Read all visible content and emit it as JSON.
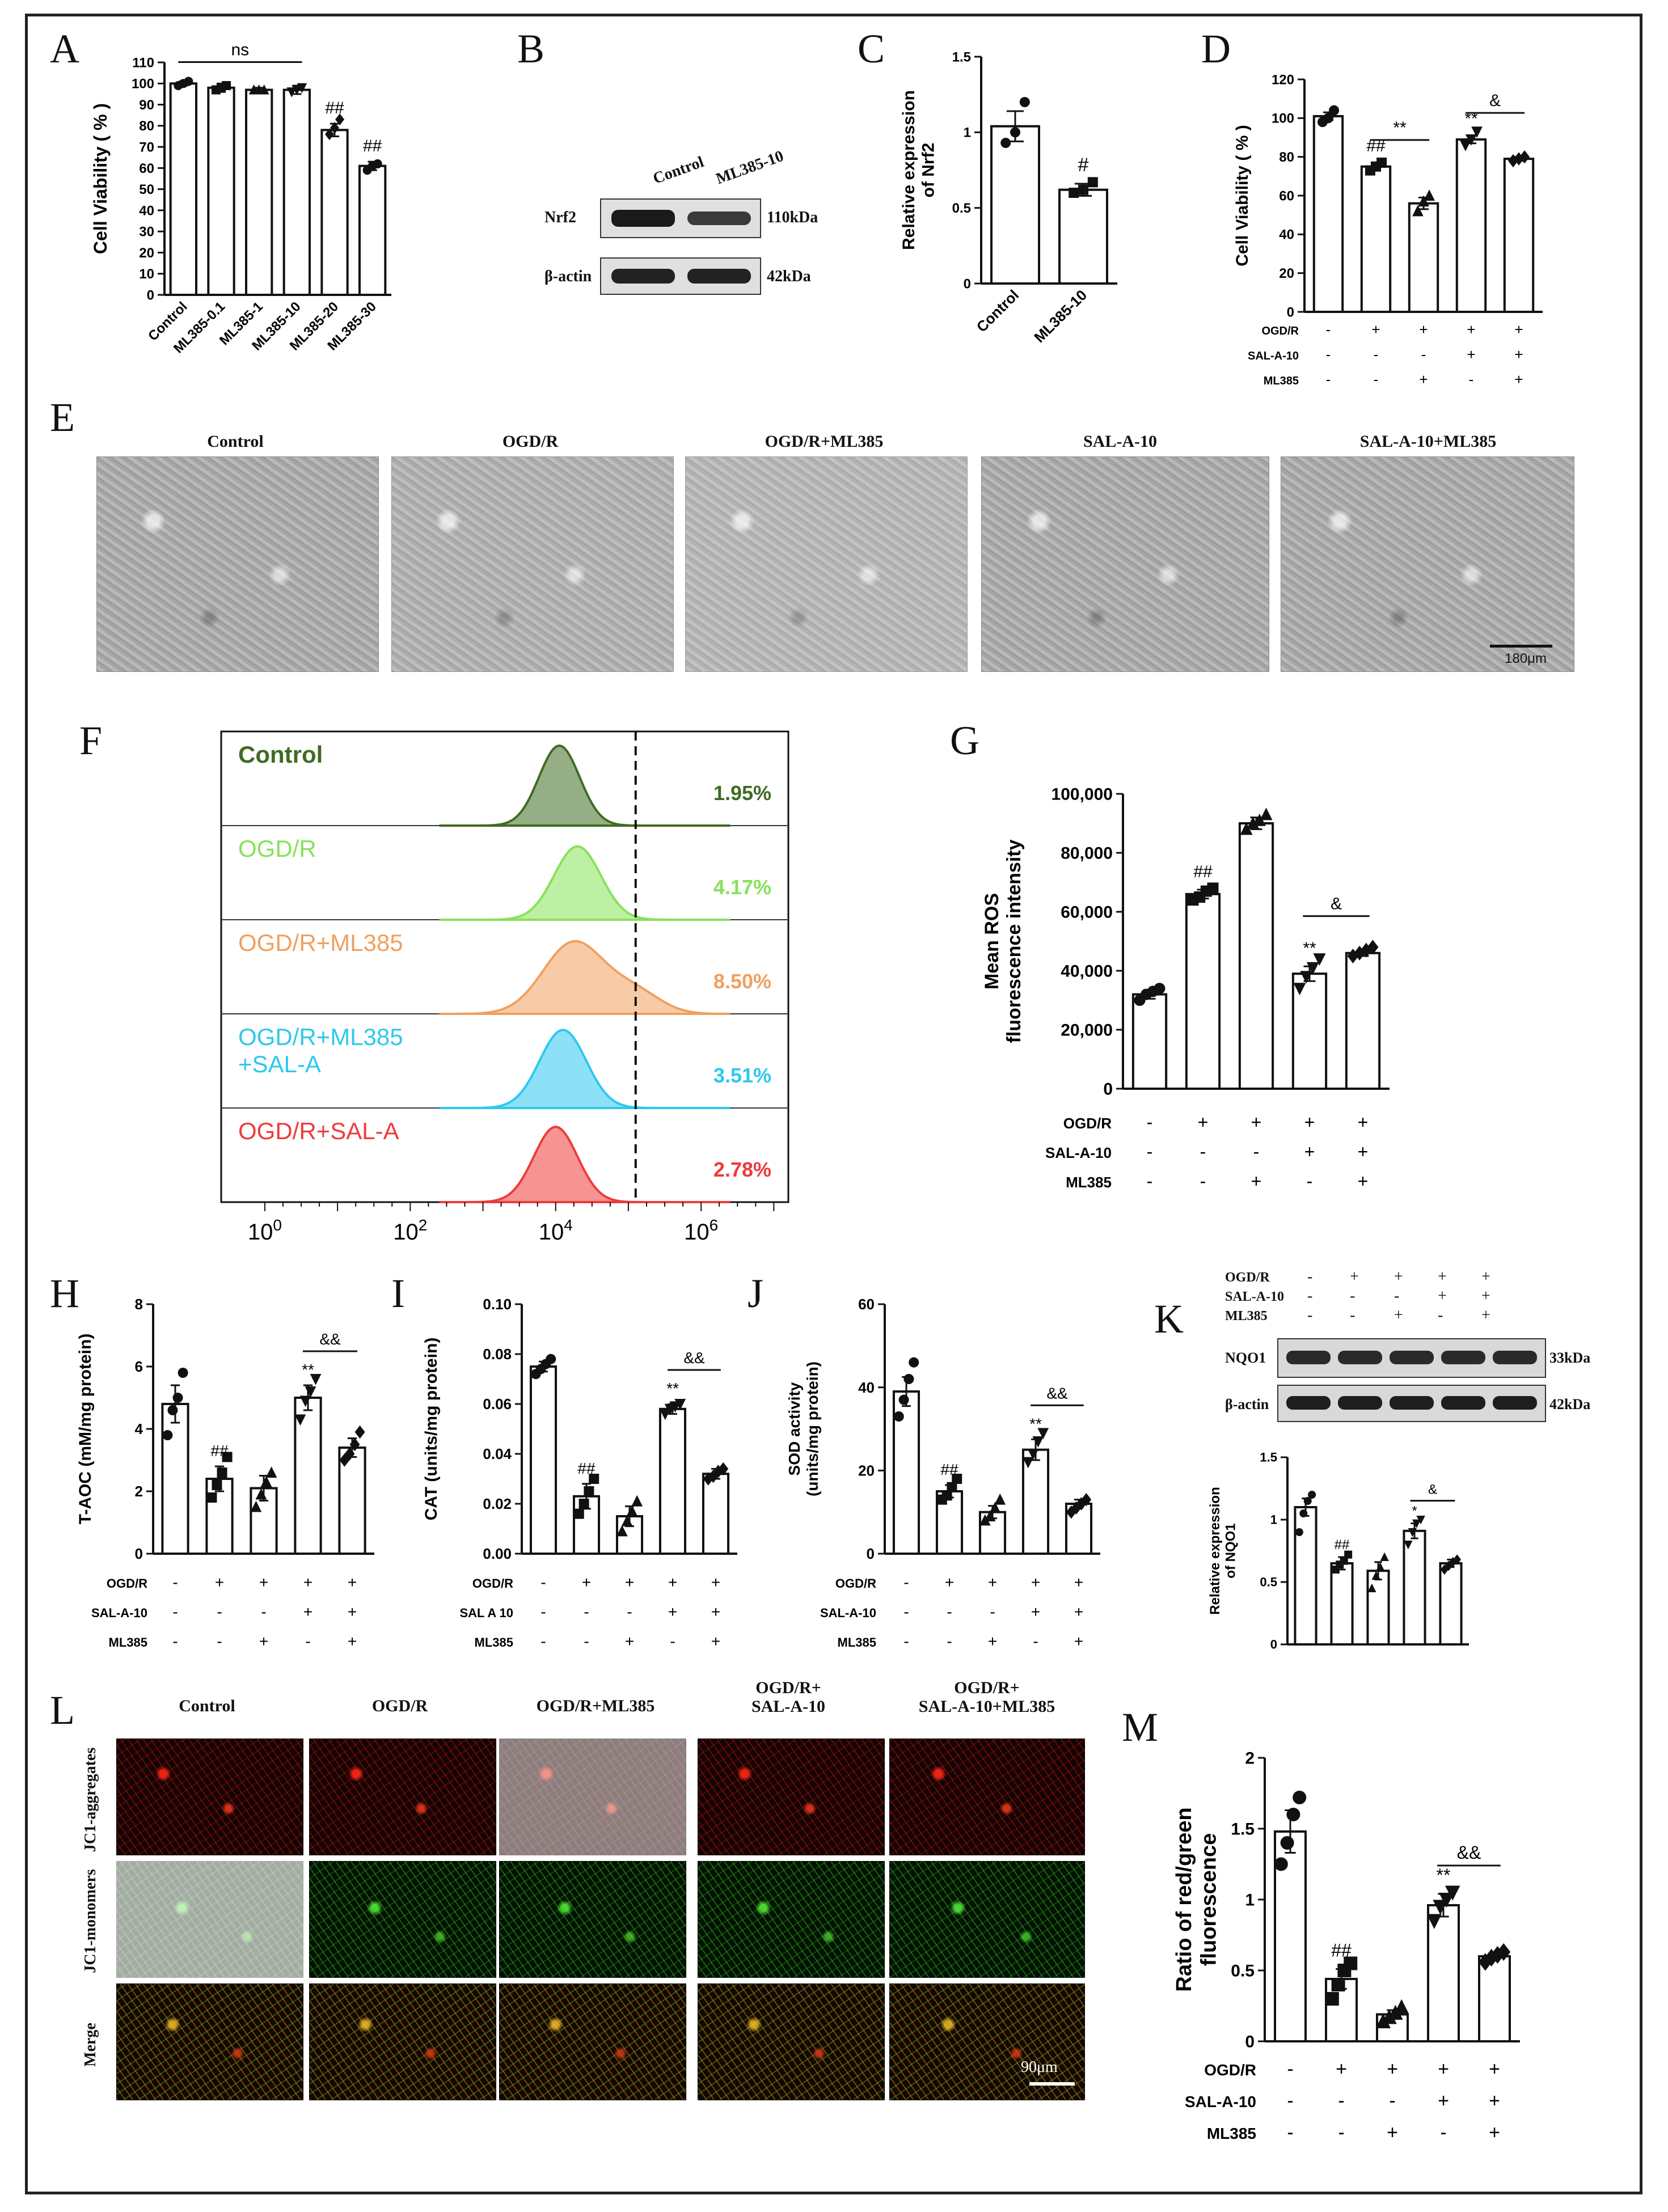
{
  "panel_letters": {
    "A": "A",
    "B": "B",
    "C": "C",
    "D": "D",
    "E": "E",
    "F": "F",
    "G": "G",
    "H": "H",
    "I": "I",
    "J": "J",
    "K": "K",
    "L": "L",
    "M": "M"
  },
  "treatment_rows": {
    "ogdr": "OGD/R",
    "sal": "SAL-A-10",
    "sal_I": "SAL A 10",
    "ml385": "ML385",
    "signs": [
      [
        "-",
        "+",
        "+",
        "+",
        "+"
      ],
      [
        "-",
        "-",
        "-",
        "+",
        "+"
      ],
      [
        "-",
        "-",
        "+",
        "-",
        "+"
      ]
    ]
  },
  "blot_B": {
    "lanes": [
      "Control",
      "ML385-10"
    ],
    "rows": [
      {
        "name": "Nrf2",
        "size": "110kDa"
      },
      {
        "name": "β-actin",
        "size": "42kDa"
      }
    ]
  },
  "blot_K": {
    "rows": [
      {
        "name": "NQO1",
        "size": "33kDa"
      },
      {
        "name": "β-actin",
        "size": "42kDa"
      }
    ]
  },
  "panel_E": {
    "titles": [
      "Control",
      "OGD/R",
      "OGD/R+ML385",
      "SAL-A-10",
      "SAL-A-10+ML385"
    ],
    "scale_bar": "180μm"
  },
  "panel_L": {
    "titles": [
      "Control",
      "OGD/R",
      "OGD/R+ML385",
      "OGD/R+\nSAL-A-10",
      "OGD/R+\nSAL-A-10+ML385"
    ],
    "rows": [
      "JC1-aggregates",
      "JC1-monomers",
      "Merge"
    ],
    "scale_bar": "90μm"
  },
  "chart_data": [
    {
      "panel": "A",
      "type": "bar",
      "ylabel": "Cell Viability ( % )",
      "categories": [
        "Control",
        "ML385-0.1",
        "ML385-1",
        "ML385-10",
        "ML385-20",
        "ML385-30"
      ],
      "values": [
        100,
        98,
        97,
        97,
        78,
        61
      ],
      "errors": [
        1,
        2,
        1,
        2,
        3,
        2
      ],
      "points": [
        [
          99,
          100,
          101
        ],
        [
          97,
          98,
          99
        ],
        [
          97,
          97,
          97
        ],
        [
          96,
          97,
          98
        ],
        [
          76,
          79,
          83
        ],
        [
          59,
          61,
          62
        ]
      ],
      "ylim": [
        0,
        110
      ],
      "yticks": [
        0,
        10,
        20,
        30,
        40,
        50,
        60,
        70,
        80,
        90,
        100,
        110
      ],
      "annotations": [
        "",
        "",
        "",
        "",
        "##",
        "##"
      ],
      "bracket": {
        "from": 0,
        "to": 3,
        "label": "ns"
      }
    },
    {
      "panel": "C",
      "type": "bar",
      "ylabel": "Relative expression\nof Nrf2",
      "categories": [
        "Control",
        "ML385-10"
      ],
      "values": [
        1.04,
        0.62
      ],
      "errors": [
        0.1,
        0.04
      ],
      "points": [
        [
          0.93,
          1.0,
          1.2
        ],
        [
          0.6,
          0.62,
          0.67
        ]
      ],
      "ylim": [
        0,
        1.5
      ],
      "yticks": [
        0.0,
        0.5,
        1.0,
        1.5
      ],
      "annotations": [
        "",
        "#"
      ]
    },
    {
      "panel": "D",
      "type": "bar",
      "ylabel": "Cell Viability ( % )",
      "values": [
        101,
        75,
        56,
        89,
        79
      ],
      "errors": [
        2,
        2,
        3,
        2,
        1
      ],
      "points": [
        [
          98,
          100,
          104
        ],
        [
          73,
          75,
          77
        ],
        [
          52,
          57,
          60
        ],
        [
          86,
          89,
          93
        ],
        [
          78,
          79,
          80
        ]
      ],
      "ylim": [
        0,
        120
      ],
      "yticks": [
        0,
        20,
        40,
        60,
        80,
        100,
        120
      ],
      "annotations": [
        "",
        "##",
        "",
        "**",
        ""
      ],
      "brackets": [
        {
          "from": 1,
          "to": 2,
          "label": "**"
        },
        {
          "from": 3,
          "to": 4,
          "label": "&"
        }
      ]
    },
    {
      "panel": "F",
      "type": "histogram",
      "xticks": [
        "10^0",
        "10^2",
        "10^4",
        "10^6"
      ],
      "series": [
        {
          "name": "Control",
          "percent": "1.95%",
          "color": "#3f6b22"
        },
        {
          "name": "OGD/R",
          "percent": "4.17%",
          "color": "#86e25a"
        },
        {
          "name": "OGD/R+ML385",
          "percent": "8.50%",
          "color": "#f0a060"
        },
        {
          "name": "OGD/R+ML385\n+SAL-A",
          "percent": "3.51%",
          "color": "#2ec8ee"
        },
        {
          "name": "OGD/R+SAL-A",
          "percent": "2.78%",
          "color": "#ee3b3b"
        }
      ]
    },
    {
      "panel": "G",
      "type": "bar",
      "ylabel": "Mean ROS\nfluorescence intensity",
      "values": [
        32000,
        66000,
        90000,
        39000,
        46000
      ],
      "errors": [
        1500,
        1500,
        2000,
        2500,
        1000
      ],
      "points": [
        [
          30000,
          32000,
          33000,
          34000
        ],
        [
          64000,
          65000,
          67000,
          68000
        ],
        [
          88000,
          90000,
          91000,
          93000
        ],
        [
          34000,
          38000,
          41000,
          44000
        ],
        [
          45000,
          46000,
          47000,
          48000
        ]
      ],
      "ylim": [
        0,
        100000
      ],
      "yticks": [
        0,
        20000,
        40000,
        60000,
        80000,
        100000
      ],
      "ytick_labels": [
        "0",
        "20,000",
        "40,000",
        "60,000",
        "80,000",
        "100,000"
      ],
      "annotations": [
        "",
        "##",
        "",
        "**",
        ""
      ],
      "brackets": [
        {
          "from": 3,
          "to": 4,
          "label": "&"
        }
      ]
    },
    {
      "panel": "H",
      "type": "bar",
      "ylabel": "T-AOC (mM/mg protein)",
      "values": [
        4.8,
        2.4,
        2.1,
        5.0,
        3.4
      ],
      "errors": [
        0.6,
        0.4,
        0.4,
        0.4,
        0.3
      ],
      "points": [
        [
          3.8,
          4.6,
          5.0,
          5.8
        ],
        [
          1.8,
          2.2,
          2.6,
          3.1
        ],
        [
          1.5,
          1.9,
          2.3,
          2.6
        ],
        [
          4.3,
          4.9,
          5.2,
          5.6
        ],
        [
          3.0,
          3.2,
          3.5,
          3.9
        ]
      ],
      "ylim": [
        0,
        8
      ],
      "yticks": [
        0,
        2,
        4,
        6,
        8
      ],
      "annotations": [
        "",
        "##",
        "",
        "**",
        ""
      ],
      "brackets": [
        {
          "from": 3,
          "to": 4,
          "label": "&&"
        }
      ]
    },
    {
      "panel": "I",
      "type": "bar",
      "ylabel": "CAT (units/mg protein)",
      "values": [
        0.075,
        0.023,
        0.015,
        0.058,
        0.032
      ],
      "errors": [
        0.002,
        0.005,
        0.004,
        0.002,
        0.002
      ],
      "points": [
        [
          0.072,
          0.074,
          0.076,
          0.078
        ],
        [
          0.016,
          0.02,
          0.025,
          0.03
        ],
        [
          0.009,
          0.013,
          0.017,
          0.021
        ],
        [
          0.056,
          0.058,
          0.059,
          0.06
        ],
        [
          0.03,
          0.031,
          0.033,
          0.034
        ]
      ],
      "ylim": [
        0,
        0.1
      ],
      "yticks": [
        0.0,
        0.02,
        0.04,
        0.06,
        0.08,
        0.1
      ],
      "ytick_labels": [
        "0.00",
        "0.02",
        "0.04",
        "0.06",
        "0.08",
        "0.10"
      ],
      "annotations": [
        "",
        "##",
        "",
        "**",
        ""
      ],
      "brackets": [
        {
          "from": 3,
          "to": 4,
          "label": "&&"
        }
      ]
    },
    {
      "panel": "J",
      "type": "bar",
      "ylabel": "SOD activity\n(units/mg protein)",
      "values": [
        39,
        15,
        10,
        25,
        12
      ],
      "errors": [
        3.5,
        1.5,
        1.5,
        2.5,
        1
      ],
      "points": [
        [
          33,
          37,
          42,
          46
        ],
        [
          13,
          14,
          16,
          18
        ],
        [
          8,
          9,
          11,
          13
        ],
        [
          22,
          24,
          27,
          29
        ],
        [
          10,
          11,
          12,
          13
        ]
      ],
      "ylim": [
        0,
        60
      ],
      "yticks": [
        0,
        20,
        40,
        60
      ],
      "annotations": [
        "",
        "##",
        "",
        "**",
        ""
      ],
      "brackets": [
        {
          "from": 3,
          "to": 4,
          "label": "&&"
        }
      ]
    },
    {
      "panel": "K",
      "type": "bar",
      "ylabel": "Relative expression\nof NQO1",
      "values": [
        1.1,
        0.65,
        0.59,
        0.91,
        0.65
      ],
      "errors": [
        0.07,
        0.05,
        0.07,
        0.06,
        0.03
      ],
      "points": [
        [
          0.9,
          1.05,
          1.15,
          1.2
        ],
        [
          0.6,
          0.64,
          0.67,
          0.72
        ],
        [
          0.45,
          0.55,
          0.62,
          0.7
        ],
        [
          0.8,
          0.9,
          0.97,
          1.0
        ],
        [
          0.6,
          0.63,
          0.66,
          0.68
        ]
      ],
      "ylim": [
        0,
        1.5
      ],
      "yticks": [
        0.0,
        0.5,
        1.0,
        1.5
      ],
      "annotations": [
        "",
        "##",
        "",
        "*",
        ""
      ],
      "brackets": [
        {
          "from": 3,
          "to": 4,
          "label": "&"
        }
      ]
    },
    {
      "panel": "M",
      "type": "bar",
      "ylabel": "Ratio of red/green\nfluorescence",
      "values": [
        1.48,
        0.44,
        0.19,
        0.96,
        0.6
      ],
      "errors": [
        0.15,
        0.07,
        0.03,
        0.08,
        0.02
      ],
      "points": [
        [
          1.25,
          1.4,
          1.6,
          1.72
        ],
        [
          0.3,
          0.4,
          0.5,
          0.55
        ],
        [
          0.14,
          0.17,
          0.2,
          0.24
        ],
        [
          0.85,
          0.95,
          1.0,
          1.05
        ],
        [
          0.56,
          0.59,
          0.61,
          0.63
        ]
      ],
      "ylim": [
        0,
        2.0
      ],
      "yticks": [
        0.0,
        0.5,
        1.0,
        1.5,
        2.0
      ],
      "annotations": [
        "",
        "##",
        "",
        "**",
        ""
      ],
      "brackets": [
        {
          "from": 3,
          "to": 4,
          "label": "&&"
        }
      ]
    }
  ]
}
